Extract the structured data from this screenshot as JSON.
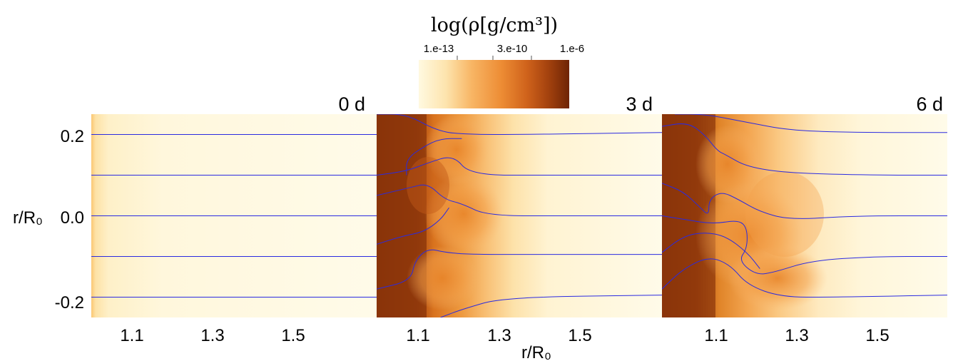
{
  "colorbar": {
    "title": "log(ρ[g/cm³])",
    "tick_labels": [
      "1.e-13",
      "3.e-10",
      "1.e-6"
    ],
    "colormap": [
      "#fff9e0",
      "#fde0a8",
      "#f8b15c",
      "#ea852c",
      "#c45a18",
      "#963a0c",
      "#6e2405"
    ]
  },
  "line_color": "#2a2ae0",
  "y_axis": {
    "label": "r/R₀",
    "tick_labels": [
      "0.2",
      "0.0",
      "-0.2"
    ]
  },
  "x_axis": {
    "label": "r/R₀",
    "tick_labels": [
      "1.1",
      "1.3",
      "1.5"
    ]
  },
  "chart_data": [
    {
      "type": "heatmap",
      "panel_label": "0 d",
      "xlim": [
        1.0,
        1.67
      ],
      "ylim": [
        -0.25,
        0.25
      ],
      "xticks": [
        1.1,
        1.3,
        1.5
      ],
      "yticks": [
        0.2,
        0.0,
        -0.2
      ],
      "streamlines": [
        [
          [
            1.0,
            0.2
          ],
          [
            1.67,
            0.2
          ]
        ],
        [
          [
            1.0,
            0.1
          ],
          [
            1.67,
            0.1
          ]
        ],
        [
          [
            1.0,
            0.0
          ],
          [
            1.67,
            0.0
          ]
        ],
        [
          [
            1.0,
            -0.1
          ],
          [
            1.67,
            -0.1
          ]
        ],
        [
          [
            1.0,
            -0.2
          ],
          [
            1.67,
            -0.2
          ]
        ]
      ]
    },
    {
      "type": "heatmap",
      "panel_label": "3 d",
      "xlim": [
        1.0,
        1.67
      ],
      "ylim": [
        -0.25,
        0.25
      ],
      "xticks": [
        1.1,
        1.3,
        1.5
      ],
      "yticks": [
        0.2,
        0.0,
        -0.2
      ],
      "streamlines": [
        [
          [
            1.0,
            0.25
          ],
          [
            1.07,
            0.25
          ],
          [
            1.14,
            0.21
          ],
          [
            1.2,
            0.2
          ],
          [
            1.35,
            0.2
          ],
          [
            1.67,
            0.205
          ]
        ],
        [
          [
            1.07,
            0.1
          ],
          [
            1.07,
            0.14
          ],
          [
            1.11,
            0.17
          ],
          [
            1.15,
            0.19
          ],
          [
            1.2,
            0.19
          ]
        ],
        [
          [
            1.0,
            0.1
          ],
          [
            1.07,
            0.11
          ],
          [
            1.12,
            0.13
          ],
          [
            1.18,
            0.15
          ],
          [
            1.22,
            0.1
          ],
          [
            1.4,
            0.1
          ],
          [
            1.67,
            0.1
          ]
        ],
        [
          [
            1.0,
            0.05
          ],
          [
            1.08,
            0.07
          ],
          [
            1.12,
            0.08
          ],
          [
            1.16,
            0.04
          ],
          [
            1.2,
            0.03
          ],
          [
            1.26,
            0.0
          ],
          [
            1.45,
            0.0
          ],
          [
            1.67,
            0.0
          ]
        ],
        [
          [
            1.0,
            -0.07
          ],
          [
            1.06,
            -0.05
          ],
          [
            1.11,
            -0.04
          ],
          [
            1.15,
            -0.01
          ],
          [
            1.17,
            0.02
          ]
        ],
        [
          [
            1.0,
            -0.18
          ],
          [
            1.08,
            -0.16
          ],
          [
            1.09,
            -0.11
          ],
          [
            1.12,
            -0.08
          ],
          [
            1.16,
            -0.09
          ],
          [
            1.22,
            -0.095
          ],
          [
            1.4,
            -0.095
          ],
          [
            1.67,
            -0.095
          ]
        ],
        [
          [
            1.15,
            -0.25
          ],
          [
            1.2,
            -0.23
          ],
          [
            1.3,
            -0.2
          ],
          [
            1.67,
            -0.195
          ]
        ]
      ]
    },
    {
      "type": "heatmap",
      "panel_label": "6 d",
      "xlim": [
        1.0,
        1.67
      ],
      "ylim": [
        -0.25,
        0.25
      ],
      "xticks": [
        1.1,
        1.3,
        1.5
      ],
      "yticks": [
        0.2,
        0.0,
        -0.2
      ],
      "streamlines": [
        [
          [
            1.03,
            0.25
          ],
          [
            1.1,
            0.25
          ],
          [
            1.2,
            0.23
          ],
          [
            1.3,
            0.21
          ],
          [
            1.45,
            0.205
          ],
          [
            1.67,
            0.205
          ]
        ],
        [
          [
            1.0,
            0.22
          ],
          [
            1.06,
            0.23
          ],
          [
            1.1,
            0.2
          ],
          [
            1.13,
            0.16
          ],
          [
            1.15,
            0.15
          ],
          [
            1.2,
            0.12
          ],
          [
            1.3,
            0.105
          ],
          [
            1.5,
            0.1
          ],
          [
            1.67,
            0.1
          ]
        ],
        [
          [
            1.0,
            0.08
          ],
          [
            1.05,
            0.06
          ],
          [
            1.09,
            0.02
          ],
          [
            1.11,
            0.0
          ],
          [
            1.11,
            0.04
          ],
          [
            1.14,
            0.06
          ],
          [
            1.18,
            0.04
          ],
          [
            1.23,
            0.01
          ],
          [
            1.3,
            -0.01
          ],
          [
            1.45,
            0.0
          ],
          [
            1.67,
            0.0
          ]
        ],
        [
          [
            1.0,
            -0.0
          ],
          [
            1.06,
            -0.01
          ],
          [
            1.12,
            -0.02
          ],
          [
            1.18,
            -0.01
          ],
          [
            1.2,
            -0.03
          ],
          [
            1.2,
            -0.08
          ],
          [
            1.18,
            -0.11
          ],
          [
            1.22,
            -0.145
          ],
          [
            1.26,
            -0.14
          ],
          [
            1.35,
            -0.11
          ],
          [
            1.5,
            -0.1
          ],
          [
            1.67,
            -0.1
          ]
        ],
        [
          [
            1.0,
            -0.09
          ],
          [
            1.05,
            -0.05
          ],
          [
            1.1,
            -0.04
          ],
          [
            1.15,
            -0.05
          ],
          [
            1.2,
            -0.09
          ],
          [
            1.23,
            -0.13
          ]
        ],
        [
          [
            1.0,
            -0.18
          ],
          [
            1.05,
            -0.13
          ],
          [
            1.11,
            -0.1
          ],
          [
            1.16,
            -0.12
          ],
          [
            1.2,
            -0.17
          ],
          [
            1.28,
            -0.2
          ],
          [
            1.4,
            -0.2
          ],
          [
            1.67,
            -0.195
          ]
        ]
      ]
    }
  ]
}
